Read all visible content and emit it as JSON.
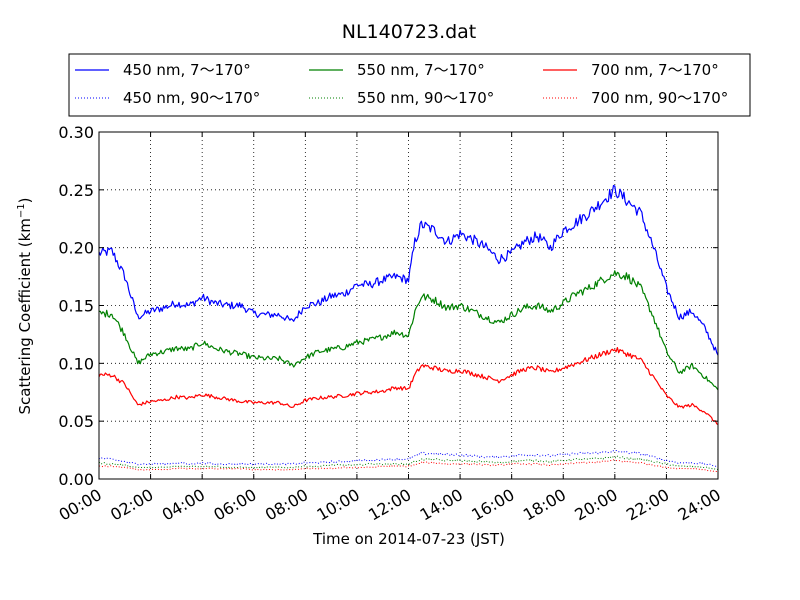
{
  "chart_data": {
    "type": "line",
    "title": "NL140723.dat",
    "xlabel": "Time on 2014-07-23 (JST)",
    "ylabel": "Scattering Coefficient (km",
    "ylabel_sup": "−1",
    "ylabel_end": ")",
    "ylim": [
      0.0,
      0.3
    ],
    "yticks": [
      "0.00",
      "0.05",
      "0.10",
      "0.15",
      "0.20",
      "0.25",
      "0.30"
    ],
    "xlim": [
      "00:00",
      "24:00"
    ],
    "xticks": [
      "00:00",
      "02:00",
      "04:00",
      "06:00",
      "08:00",
      "10:00",
      "12:00",
      "14:00",
      "16:00",
      "18:00",
      "20:00",
      "22:00",
      "24:00"
    ],
    "grid": true,
    "legend_position": "top, outside plot, 3 columns",
    "x": [
      "00:00",
      "00:30",
      "01:00",
      "01:30",
      "02:00",
      "02:30",
      "03:00",
      "03:30",
      "04:00",
      "04:30",
      "05:00",
      "05:30",
      "06:00",
      "06:30",
      "07:00",
      "07:30",
      "08:00",
      "08:30",
      "09:00",
      "09:30",
      "10:00",
      "10:30",
      "11:00",
      "11:30",
      "12:00",
      "12:15",
      "12:30",
      "13:00",
      "13:30",
      "14:00",
      "14:30",
      "15:00",
      "15:30",
      "16:00",
      "16:30",
      "17:00",
      "17:30",
      "18:00",
      "18:30",
      "19:00",
      "19:30",
      "20:00",
      "20:30",
      "21:00",
      "21:30",
      "22:00",
      "22:30",
      "23:00",
      "23:30",
      "24:00"
    ],
    "series": [
      {
        "name": "450 nm, 7～170°",
        "color": "#0000ff",
        "style": "solid",
        "values": [
          0.195,
          0.197,
          0.175,
          0.14,
          0.145,
          0.148,
          0.152,
          0.15,
          0.157,
          0.152,
          0.15,
          0.15,
          0.143,
          0.142,
          0.142,
          0.136,
          0.15,
          0.152,
          0.158,
          0.16,
          0.168,
          0.168,
          0.172,
          0.175,
          0.172,
          0.205,
          0.22,
          0.215,
          0.205,
          0.212,
          0.207,
          0.2,
          0.19,
          0.195,
          0.205,
          0.21,
          0.2,
          0.215,
          0.222,
          0.23,
          0.24,
          0.25,
          0.24,
          0.23,
          0.2,
          0.165,
          0.14,
          0.145,
          0.13,
          0.107
        ]
      },
      {
        "name": "550 nm, 7～170°",
        "color": "#008000",
        "style": "solid",
        "values": [
          0.143,
          0.143,
          0.125,
          0.1,
          0.108,
          0.11,
          0.113,
          0.112,
          0.118,
          0.113,
          0.11,
          0.108,
          0.105,
          0.104,
          0.104,
          0.098,
          0.105,
          0.11,
          0.112,
          0.114,
          0.118,
          0.12,
          0.123,
          0.127,
          0.124,
          0.145,
          0.158,
          0.155,
          0.148,
          0.15,
          0.145,
          0.14,
          0.135,
          0.142,
          0.148,
          0.15,
          0.145,
          0.152,
          0.16,
          0.165,
          0.172,
          0.178,
          0.175,
          0.165,
          0.14,
          0.11,
          0.092,
          0.098,
          0.088,
          0.077
        ]
      },
      {
        "name": "700 nm, 7～170°",
        "color": "#ff0000",
        "style": "solid",
        "values": [
          0.09,
          0.09,
          0.082,
          0.064,
          0.067,
          0.068,
          0.071,
          0.07,
          0.073,
          0.071,
          0.069,
          0.067,
          0.066,
          0.066,
          0.066,
          0.062,
          0.068,
          0.07,
          0.071,
          0.072,
          0.074,
          0.075,
          0.076,
          0.079,
          0.078,
          0.09,
          0.098,
          0.096,
          0.093,
          0.094,
          0.091,
          0.088,
          0.085,
          0.09,
          0.095,
          0.096,
          0.092,
          0.096,
          0.1,
          0.104,
          0.108,
          0.112,
          0.108,
          0.103,
          0.088,
          0.072,
          0.062,
          0.064,
          0.058,
          0.047
        ]
      },
      {
        "name": "450 nm, 90～170°",
        "color": "#0000ff",
        "style": "dotted",
        "values": [
          0.018,
          0.017,
          0.015,
          0.013,
          0.013,
          0.013,
          0.014,
          0.013,
          0.014,
          0.013,
          0.013,
          0.013,
          0.013,
          0.013,
          0.013,
          0.013,
          0.014,
          0.014,
          0.015,
          0.015,
          0.016,
          0.016,
          0.017,
          0.017,
          0.017,
          0.02,
          0.022,
          0.022,
          0.021,
          0.021,
          0.02,
          0.019,
          0.019,
          0.02,
          0.021,
          0.021,
          0.02,
          0.021,
          0.022,
          0.022,
          0.023,
          0.024,
          0.023,
          0.022,
          0.019,
          0.016,
          0.014,
          0.014,
          0.013,
          0.011
        ]
      },
      {
        "name": "550 nm, 90～170°",
        "color": "#008000",
        "style": "dotted",
        "values": [
          0.014,
          0.013,
          0.012,
          0.01,
          0.01,
          0.01,
          0.011,
          0.011,
          0.011,
          0.011,
          0.01,
          0.01,
          0.01,
          0.01,
          0.01,
          0.01,
          0.011,
          0.011,
          0.012,
          0.012,
          0.012,
          0.013,
          0.013,
          0.013,
          0.013,
          0.015,
          0.017,
          0.017,
          0.016,
          0.016,
          0.015,
          0.015,
          0.014,
          0.015,
          0.016,
          0.016,
          0.015,
          0.016,
          0.017,
          0.017,
          0.018,
          0.019,
          0.018,
          0.017,
          0.015,
          0.013,
          0.011,
          0.011,
          0.01,
          0.008
        ]
      },
      {
        "name": "700 nm, 90～170°",
        "color": "#ff0000",
        "style": "dotted",
        "values": [
          0.011,
          0.011,
          0.01,
          0.008,
          0.008,
          0.008,
          0.009,
          0.009,
          0.009,
          0.009,
          0.009,
          0.009,
          0.008,
          0.008,
          0.008,
          0.008,
          0.009,
          0.009,
          0.009,
          0.01,
          0.01,
          0.01,
          0.011,
          0.011,
          0.011,
          0.012,
          0.014,
          0.014,
          0.013,
          0.013,
          0.013,
          0.012,
          0.012,
          0.013,
          0.013,
          0.013,
          0.012,
          0.013,
          0.014,
          0.014,
          0.015,
          0.016,
          0.015,
          0.014,
          0.012,
          0.01,
          0.009,
          0.009,
          0.008,
          0.006
        ]
      }
    ]
  }
}
